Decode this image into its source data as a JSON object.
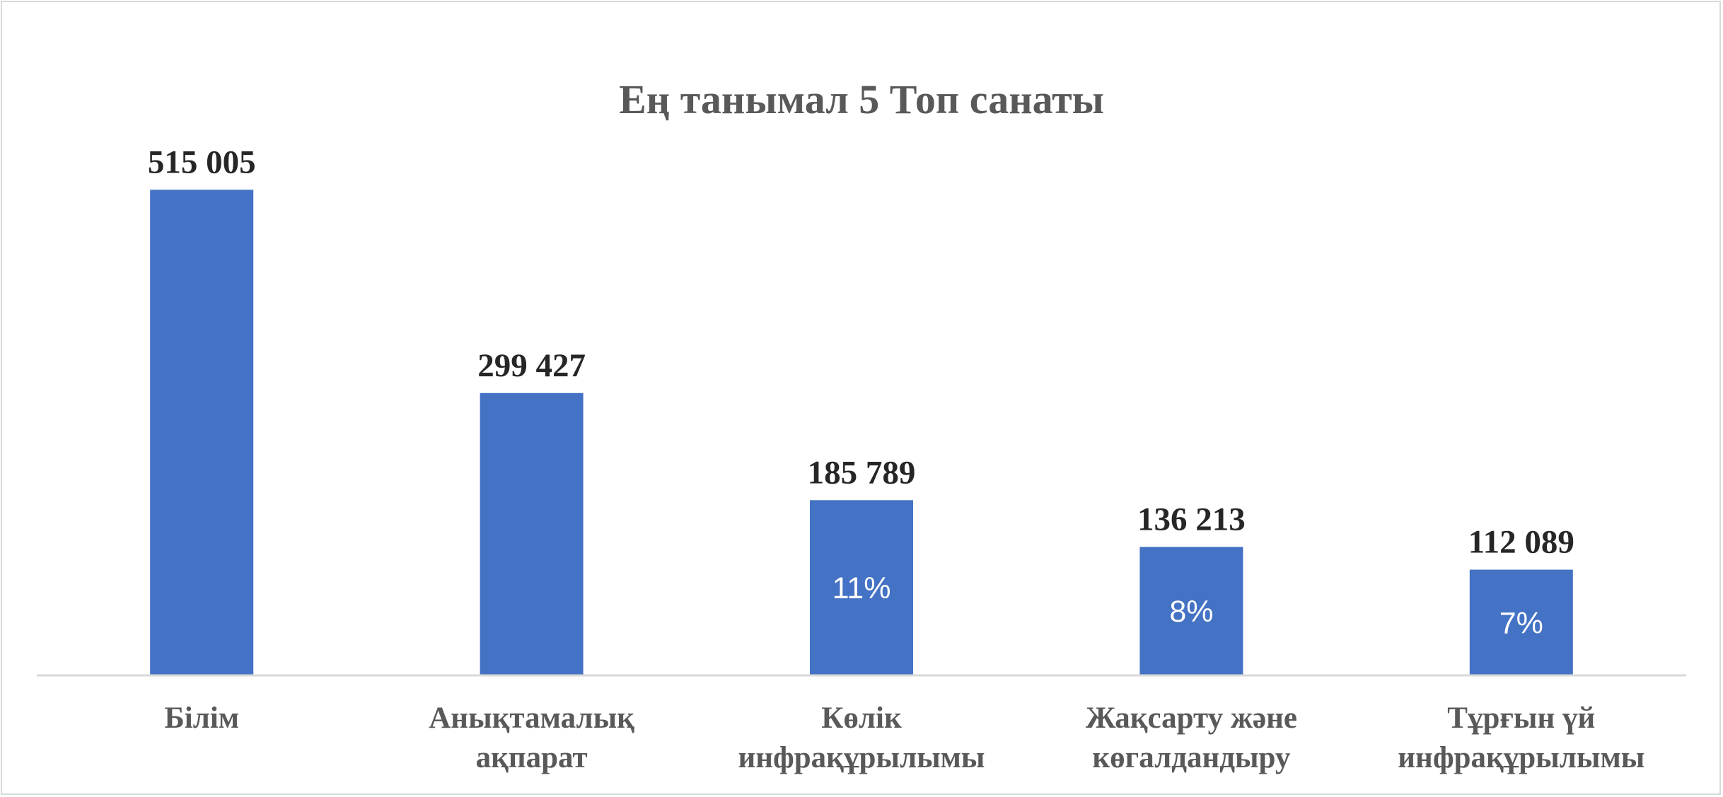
{
  "chart_data": {
    "type": "bar",
    "title": "Ең танымал 5 Топ санаты",
    "xlabel": "",
    "ylabel": "",
    "ylim": [
      0,
      600000
    ],
    "grid": false,
    "legend": "none",
    "categories": [
      [
        "Білім"
      ],
      [
        "Анықтамалық",
        "ақпарат"
      ],
      [
        "Көлік",
        "инфрақұрылымы"
      ],
      [
        "Жақсарту және",
        "көгалдандыру"
      ],
      [
        "Тұрғын үй",
        "инфрақұрылымы"
      ]
    ],
    "values": [
      515005,
      299427,
      185789,
      136213,
      112089
    ],
    "value_labels": [
      "515 005",
      "299 427",
      "185 789",
      "136 213",
      "112 089"
    ],
    "percent_labels": [
      "",
      "",
      "11%",
      "8%",
      "7%"
    ]
  },
  "colors": {
    "bar": "#4472c4",
    "title": "#595959",
    "value_label": "#262626",
    "category_label": "#595959",
    "percent_label": "#ffffff",
    "axis": "#d9d9d9"
  }
}
